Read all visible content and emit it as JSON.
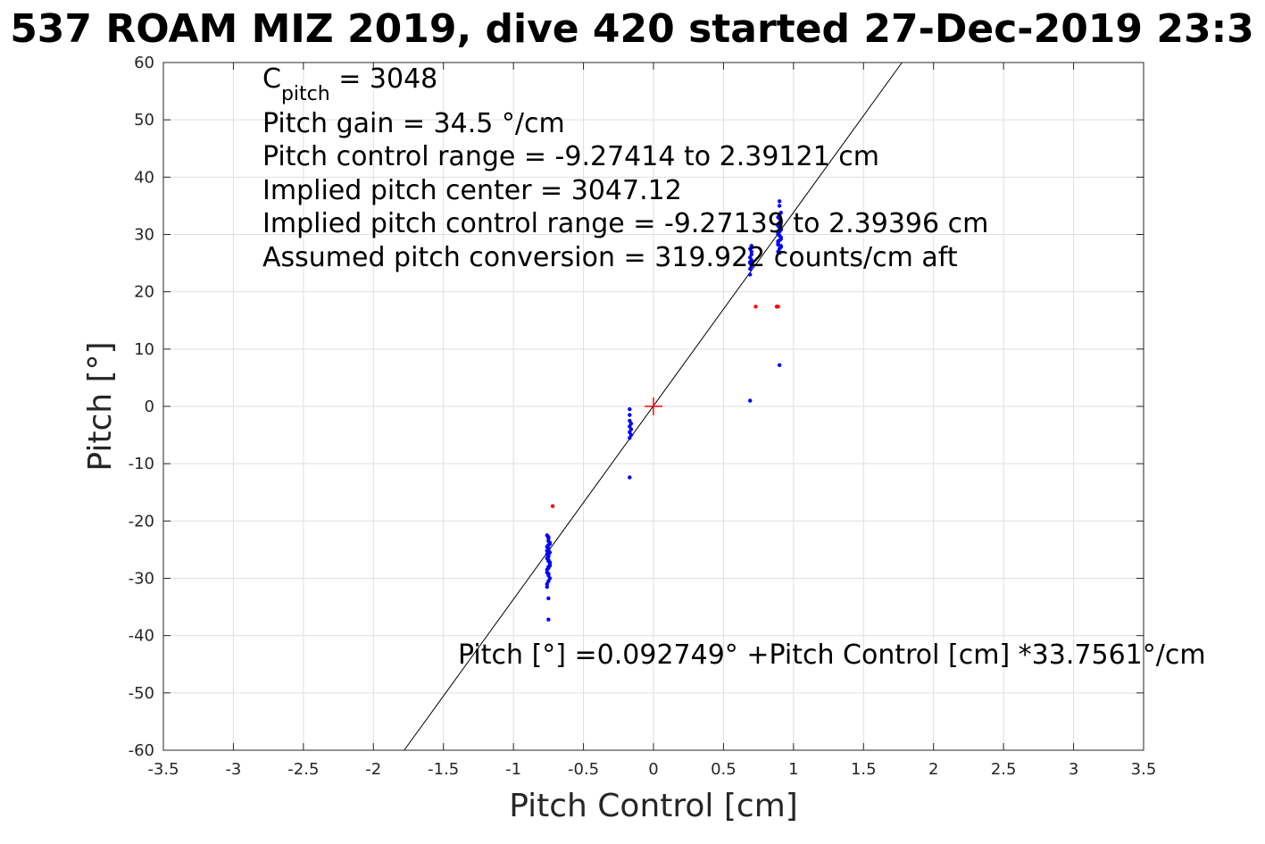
{
  "chart_data": {
    "type": "scatter",
    "title": "537 ROAM MIZ 2019, dive 420 started 27-Dec-2019 23:3",
    "xlabel": "Pitch Control [cm]",
    "ylabel": "Pitch [°]",
    "xlim": [
      -3.5,
      3.5
    ],
    "ylim": [
      -60,
      60
    ],
    "xticks": [
      -3.5,
      -3,
      -2.5,
      -2,
      -1.5,
      -1,
      -0.5,
      0,
      0.5,
      1,
      1.5,
      2,
      2.5,
      3,
      3.5
    ],
    "xtick_labels": [
      "-3.5",
      "-3",
      "-2.5",
      "-2",
      "-1.5",
      "-1",
      "-0.5",
      "0",
      "0.5",
      "1",
      "1.5",
      "2",
      "2.5",
      "3",
      "3.5"
    ],
    "yticks": [
      -60,
      -50,
      -40,
      -30,
      -20,
      -10,
      0,
      10,
      20,
      30,
      40,
      50,
      60
    ],
    "ytick_labels": [
      "-60",
      "-50",
      "-40",
      "-30",
      "-20",
      "-10",
      "0",
      "10",
      "20",
      "30",
      "40",
      "50",
      "60"
    ],
    "grid": true,
    "colors": {
      "blue": "#0000ff",
      "red": "#ff0000",
      "line": "#000000",
      "grid": "#dfdfdf",
      "axis": "#262626"
    },
    "annotations": {
      "cpitch_symbol": "C",
      "cpitch_subscript": "pitch",
      "cpitch_value": " = 3048",
      "pitch_gain": "Pitch gain = 34.5 °/cm",
      "control_range": "Pitch control range = -9.27414 to 2.39121 cm",
      "implied_center": "Implied pitch center = 3047.12",
      "implied_range": "Implied pitch control range = -9.27139 to 2.39396 cm",
      "conversion": "Assumed pitch conversion = 319.922 counts/cm aft",
      "fit_equation": "Pitch [°] =0.092749° +Pitch Control [cm] *33.7561°/cm"
    },
    "fit_line": {
      "intercept": 0.092749,
      "slope": 33.7561
    },
    "center_marker": {
      "x": 0,
      "y": 0,
      "color": "#ff0000"
    },
    "series": [
      {
        "color": "#0000ff",
        "x": [
          -0.76,
          -0.75,
          -0.75,
          -0.74,
          -0.76,
          -0.75,
          -0.74,
          -0.75,
          -0.76,
          -0.75,
          -0.74,
          -0.75,
          -0.76,
          -0.75,
          -0.74,
          -0.75,
          -0.76,
          -0.75,
          -0.74,
          -0.75,
          -0.76,
          -0.75,
          -0.74,
          -0.75,
          -0.76,
          -0.75,
          -0.74,
          -0.75,
          -0.76,
          -0.75,
          -0.76,
          -0.75,
          -0.75,
          -0.17,
          -0.17,
          -0.17,
          -0.16,
          -0.17,
          -0.16,
          -0.17,
          -0.16,
          -0.17,
          -0.17,
          0.69,
          0.69,
          0.7,
          0.69,
          0.7,
          0.69,
          0.7,
          0.7,
          0.69,
          0.7,
          0.69,
          0.89,
          0.9,
          0.91,
          0.89,
          0.9,
          0.91,
          0.89,
          0.9,
          0.91,
          0.89,
          0.9,
          0.91,
          0.89,
          0.9,
          0.91,
          0.89,
          0.9,
          0.91,
          0.89,
          0.9,
          0.91,
          0.89,
          0.9,
          0.91,
          0.89,
          0.9,
          0.91,
          0.9,
          0.9,
          0.69
        ],
        "y": [
          -22.5,
          -23.0,
          -23.5,
          -24.0,
          -24.5,
          -25.0,
          -25.5,
          -26.0,
          -26.5,
          -27.0,
          -27.5,
          -28.0,
          -28.5,
          -22.8,
          -23.8,
          -24.8,
          -25.8,
          -26.8,
          -27.8,
          -24.2,
          -25.2,
          -26.2,
          -27.2,
          -28.2,
          -29.0,
          -29.5,
          -30.0,
          -30.5,
          -31.0,
          -29.2,
          -31.5,
          -33.5,
          -37.2,
          -0.5,
          -1.5,
          -2.5,
          -3.0,
          -3.5,
          -4.0,
          -4.5,
          -5.0,
          -5.5,
          -12.4,
          23.0,
          24.0,
          24.5,
          25.0,
          25.5,
          26.0,
          26.5,
          27.0,
          27.5,
          28.0,
          25.2,
          27.0,
          27.5,
          28.0,
          28.5,
          29.0,
          29.5,
          30.0,
          30.5,
          31.0,
          31.5,
          32.0,
          32.5,
          33.0,
          33.5,
          29.2,
          30.2,
          31.2,
          32.2,
          28.2,
          29.8,
          30.8,
          31.8,
          32.8,
          27.8,
          28.8,
          26.8,
          33.8,
          35.0,
          35.8,
          1.0
        ]
      },
      {
        "color": "#ff0000",
        "x": [
          -0.72,
          0.73,
          0.88,
          0.89
        ],
        "y": [
          -17.4,
          17.4,
          17.4,
          17.4
        ]
      },
      {
        "color": "#0000ff",
        "x": [
          0.9
        ],
        "y": [
          7.2
        ]
      }
    ]
  }
}
